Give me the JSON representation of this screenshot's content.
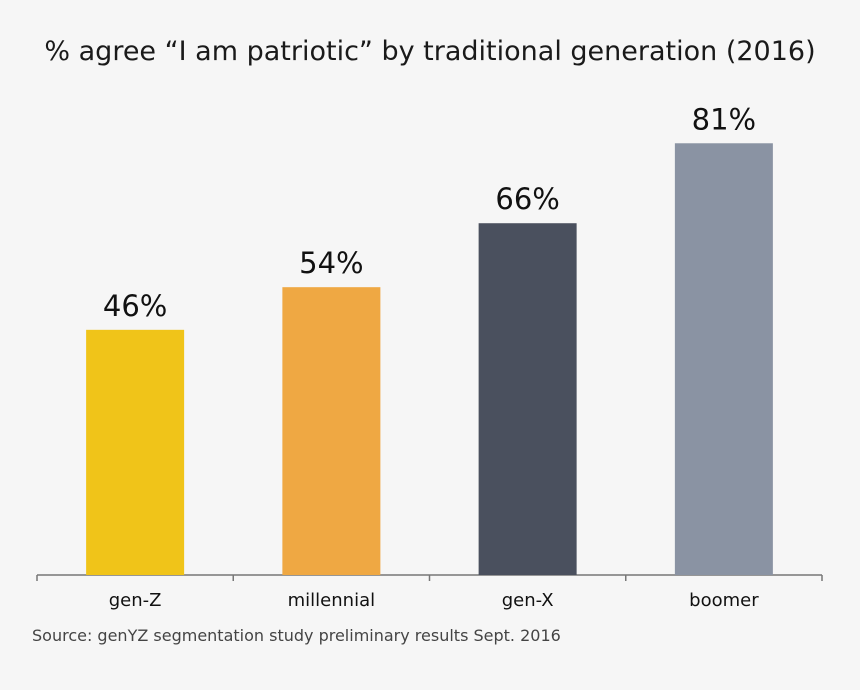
{
  "chart_data": {
    "type": "bar",
    "title": "% agree “I am patriotic” by traditional generation (2016)",
    "categories": [
      "gen-Z",
      "millennial",
      "gen-X",
      "boomer"
    ],
    "values": [
      46,
      54,
      66,
      81
    ],
    "data_labels": [
      "46%",
      "54%",
      "66%",
      "81%"
    ],
    "colors": [
      "#f0c419",
      "#efa843",
      "#4a505e",
      "#8a93a3"
    ],
    "xlabel": "",
    "ylabel": "",
    "ylim": [
      0,
      100
    ],
    "grid": false,
    "legend": "none"
  },
  "source": "Source: genYZ segmentation study preliminary results Sept. 2016",
  "axis_color": "#777777"
}
